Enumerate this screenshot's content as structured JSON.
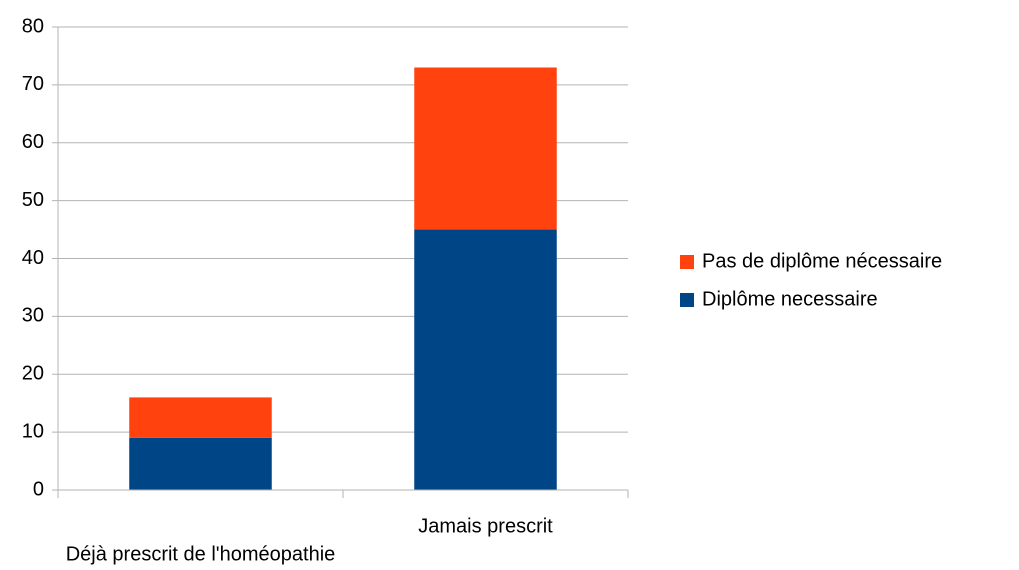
{
  "chart_data": {
    "type": "bar",
    "stacked": true,
    "categories": [
      "Déjà prescrit de l'homéopathie",
      "Jamais prescrit"
    ],
    "series": [
      {
        "name": "Diplôme necessaire",
        "color": "#004586",
        "values": [
          9,
          45
        ]
      },
      {
        "name": "Pas de diplôme nécessaire",
        "color": "#ff420e",
        "values": [
          7,
          28
        ]
      }
    ],
    "ylim": [
      0,
      80
    ],
    "yticks": [
      0,
      10,
      20,
      30,
      40,
      50,
      60,
      70,
      80
    ],
    "grid": true,
    "legend": "right"
  }
}
